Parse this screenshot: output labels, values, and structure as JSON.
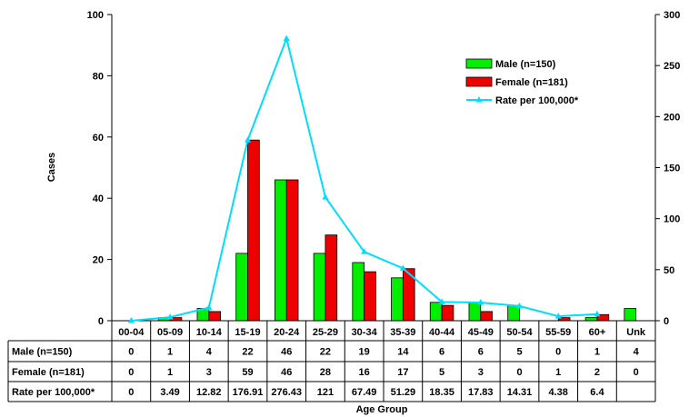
{
  "chart_data": {
    "type": "bar",
    "categories": [
      "00-04",
      "05-09",
      "10-14",
      "15-19",
      "20-24",
      "25-29",
      "30-34",
      "35-39",
      "40-44",
      "45-49",
      "50-54",
      "55-59",
      "60+",
      "Unk"
    ],
    "series": [
      {
        "name": "Male (n=150)",
        "type": "bar",
        "axis": "left",
        "color": "#00ee00",
        "values": [
          0,
          1,
          4,
          22,
          46,
          22,
          19,
          14,
          6,
          6,
          5,
          0,
          1,
          4
        ],
        "table": [
          "0",
          "1",
          "4",
          "22",
          "46",
          "22",
          "19",
          "14",
          "6",
          "6",
          "5",
          "0",
          "1",
          "4"
        ]
      },
      {
        "name": "Female (n=181)",
        "type": "bar",
        "axis": "left",
        "color": "#ee0000",
        "values": [
          0,
          1,
          3,
          59,
          46,
          28,
          16,
          17,
          5,
          3,
          0,
          1,
          2,
          0
        ],
        "table": [
          "0",
          "1",
          "3",
          "59",
          "46",
          "28",
          "16",
          "17",
          "5",
          "3",
          "0",
          "1",
          "2",
          "0"
        ]
      },
      {
        "name": "Rate per 100,000*",
        "type": "line",
        "axis": "right",
        "color": "#00ddff",
        "values": [
          0,
          3.49,
          12.82,
          176.91,
          276.43,
          121,
          67.49,
          51.29,
          18.35,
          17.83,
          14.31,
          4.38,
          6.4,
          null
        ],
        "table": [
          "0",
          "3.49",
          "12.82",
          "176.91",
          "276.43",
          "121",
          "67.49",
          "51.29",
          "18.35",
          "17.83",
          "14.31",
          "4.38",
          "6.4",
          ""
        ]
      }
    ],
    "ylabel": "Cases",
    "xlabel": "Age Group",
    "ylim": [
      0,
      100
    ],
    "yticks": [
      "0",
      "20",
      "40",
      "60",
      "80",
      "100"
    ],
    "y2lim": [
      0,
      300
    ],
    "y2ticks": [
      "0",
      "50",
      "100",
      "150",
      "200",
      "250",
      "300"
    ],
    "legend_position": "top-right",
    "grid": false
  }
}
